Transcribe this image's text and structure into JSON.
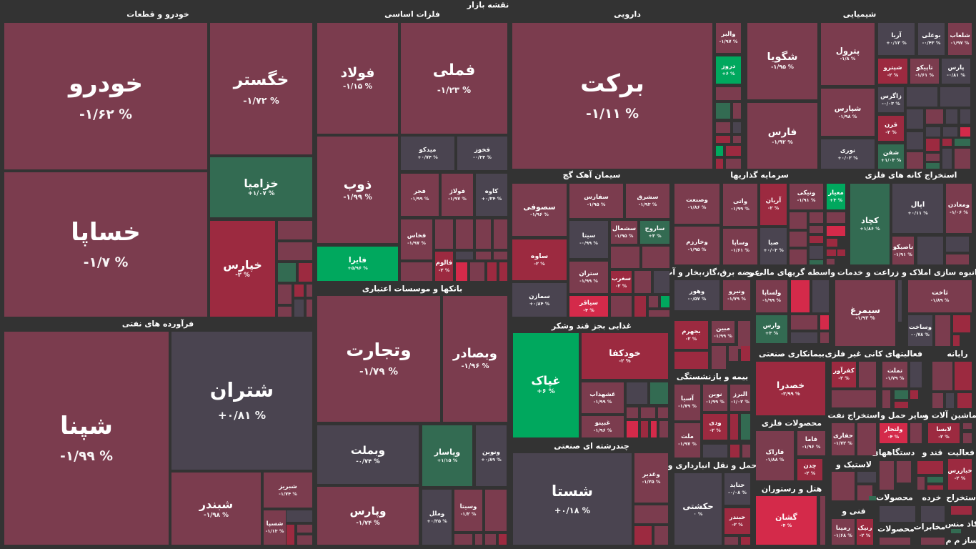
{
  "title": "نقشه بازار",
  "colors": {
    "r": "#7b3c4e",
    "g": "#4a4450",
    "R": "#9c2a40",
    "B": "#d42a4a",
    "G": "#336b52",
    "L": "#00a85e"
  },
  "sectors": [
    "خودرو و قطعات",
    "فلزات اساسی",
    "دارویی",
    "شیمیایی",
    "سیمان آهک گچ",
    "سرمایه گذاریها",
    "استخراج کانه های فلزی",
    "فرآورده های نفتی",
    "بانکها و موسسات اعتباری",
    "غذایی بجز قند وشکر",
    "چندرشته ای صنعتی",
    "عرضه برق،گاز،بخار و آب",
    "واسطه گریهای مالی و",
    "زراعت و خدمات",
    "انبوه سازی املاک و",
    "بیمه و بازنشستگی",
    "بیمانکاری صنعتی",
    "کانی غیر فلزی",
    "فعالیتهای",
    "رایانه",
    "محصولات فلزی",
    "استخراج نفت",
    "سایر حمل و",
    "ماشین آلات و",
    "حمل و نقل انبارداری و",
    "لاستیک و",
    "دستگاههای",
    "قند و",
    "فعالیت",
    "هتل و رستوران",
    "فنی و",
    "محصولات",
    "خرده",
    "استخراج",
    "محصولات",
    "مخابرات",
    "کاذ منس",
    "ساز م م"
  ],
  "tiles": [
    {
      "symbol": "خودرو",
      "change": "-۱/۶۲ %",
      "color": "r"
    },
    {
      "symbol": "خساپا",
      "change": "-۱/۷ %",
      "color": "r"
    },
    {
      "symbol": "خگستر",
      "change": "-۱/۷۲ %",
      "color": "r"
    },
    {
      "symbol": "خزامیا",
      "change": "+۱/۰۷ %",
      "color": "G"
    },
    {
      "symbol": "خپارس",
      "change": "-۲ %",
      "color": "R"
    },
    {
      "symbol": "شپنا",
      "change": "-۱/۹۹ %",
      "color": "r"
    },
    {
      "symbol": "شتران",
      "change": "+۰/۸۱ %",
      "color": "g"
    },
    {
      "symbol": "شبندر",
      "change": "-۱/۹۸ %",
      "color": "r"
    },
    {
      "symbol": "شبریز",
      "change": "-۱/۷۴ %",
      "color": "r"
    },
    {
      "symbol": "شسپا",
      "change": "-۱/۱۳ %",
      "color": "r"
    },
    {
      "symbol": "فولاد",
      "change": "-۱/۱۵ %",
      "color": "r"
    },
    {
      "symbol": "فملی",
      "change": "-۱/۲۳ %",
      "color": "r"
    },
    {
      "symbol": "ذوب",
      "change": "-۱/۹۹ %",
      "color": "r"
    },
    {
      "symbol": "فایرا",
      "change": "+۵/۹۶ %",
      "color": "L"
    },
    {
      "symbol": "میدکو",
      "change": "+۰/۷۴ %",
      "color": "g"
    },
    {
      "symbol": "فخوز",
      "change": "-۰/۳۴ %",
      "color": "g"
    },
    {
      "symbol": "فجر",
      "change": "-۱/۹۹ %",
      "color": "r"
    },
    {
      "symbol": "فولاژ",
      "change": "-۱/۹۷ %",
      "color": "r"
    },
    {
      "symbol": "کاوه",
      "change": "+۰/۳۴ %",
      "color": "g"
    },
    {
      "symbol": "فخاس",
      "change": "-۱/۹۷ %",
      "color": "r"
    },
    {
      "symbol": "فالوم",
      "change": "-۲ %",
      "color": "R"
    },
    {
      "symbol": "وتجارت",
      "change": "-۱/۷۹ %",
      "color": "r"
    },
    {
      "symbol": "وبصادر",
      "change": "-۱/۹۶ %",
      "color": "r"
    },
    {
      "symbol": "وبملت",
      "change": "-۰/۷۴ %",
      "color": "g"
    },
    {
      "symbol": "وپاسار",
      "change": "+۱/۱۵ %",
      "color": "G"
    },
    {
      "symbol": "ونوین",
      "change": "+۰/۸۹ %",
      "color": "g"
    },
    {
      "symbol": "وپارس",
      "change": "-۱/۷۴ %",
      "color": "r"
    },
    {
      "symbol": "وملل",
      "change": "+۰/۲۵ %",
      "color": "g"
    },
    {
      "symbol": "وسیتا",
      "change": "-۱/۲ %",
      "color": "r"
    },
    {
      "symbol": "برکت",
      "change": "-۱/۱۱ %",
      "color": "r"
    },
    {
      "symbol": "والبر",
      "change": "-۱/۹۷ %",
      "color": "r"
    },
    {
      "symbol": "دروز",
      "change": "+۶ %",
      "color": "L"
    },
    {
      "symbol": "شگویا",
      "change": "-۱/۹۵ %",
      "color": "r"
    },
    {
      "symbol": "فارس",
      "change": "-۱/۹۲ %",
      "color": "r"
    },
    {
      "symbol": "پترول",
      "change": "-۱/۸ %",
      "color": "r"
    },
    {
      "symbol": "شپارس",
      "change": "-۱/۹۸ %",
      "color": "r"
    },
    {
      "symbol": "نوری",
      "change": "+۰/۰۲ %",
      "color": "g"
    },
    {
      "symbol": "آریا",
      "change": "+۰/۱۲ %",
      "color": "g"
    },
    {
      "symbol": "بوعلی",
      "change": "-۰/۴۳ %",
      "color": "g"
    },
    {
      "symbol": "شلعاب",
      "change": "-۱/۹۷ %",
      "color": "r"
    },
    {
      "symbol": "شپترو",
      "change": "-۲ %",
      "color": "R"
    },
    {
      "symbol": "تاپیکو",
      "change": "-۱/۶۱ %",
      "color": "r"
    },
    {
      "symbol": "پارس",
      "change": "-۰/۸۱ %",
      "color": "g"
    },
    {
      "symbol": "زاگرس",
      "change": "-۰/۰۳ %",
      "color": "g"
    },
    {
      "symbol": "قرن",
      "change": "-۲ %",
      "color": "R"
    },
    {
      "symbol": "شفن",
      "change": "+۱/۰۳ %",
      "color": "G"
    },
    {
      "symbol": "سصوفی",
      "change": "-۱/۹۶ %",
      "color": "r"
    },
    {
      "symbol": "سفارس",
      "change": "-۱/۹۵ %",
      "color": "r"
    },
    {
      "symbol": "سشرق",
      "change": "-۱/۹۳ %",
      "color": "r"
    },
    {
      "symbol": "ساوه",
      "change": "-۲ %",
      "color": "R"
    },
    {
      "symbol": "سیتا",
      "change": "-۰/۹۹ %",
      "color": "g"
    },
    {
      "symbol": "سشمال",
      "change": "-۱/۹۵ %",
      "color": "r"
    },
    {
      "symbol": "ساروج",
      "change": "+۳ %",
      "color": "G"
    },
    {
      "symbol": "ستران",
      "change": "-۱/۹۹ %",
      "color": "r"
    },
    {
      "symbol": "سغرب",
      "change": "-۲ %",
      "color": "R"
    },
    {
      "symbol": "سمازن",
      "change": "+۰/۸۴ %",
      "color": "g"
    },
    {
      "symbol": "سیاقر",
      "change": "-۴ %",
      "color": "B"
    },
    {
      "symbol": "غپاک",
      "change": "+۶ %",
      "color": "L"
    },
    {
      "symbol": "خودکفا",
      "change": "-۲ %",
      "color": "R"
    },
    {
      "symbol": "غشهداب",
      "change": "-۱/۹۹ %",
      "color": "r"
    },
    {
      "symbol": "غبینو",
      "change": "-۱/۹۶ %",
      "color": "r"
    },
    {
      "symbol": "شستا",
      "change": "+۰/۱۸ %",
      "color": "g"
    },
    {
      "symbol": "وغدیر",
      "change": "-۱/۲۵ %",
      "color": "r"
    },
    {
      "symbol": "وصنعت",
      "change": "-۱/۸۶ %",
      "color": "r"
    },
    {
      "symbol": "واتی",
      "change": "-۱/۹۹ %",
      "color": "r"
    },
    {
      "symbol": "آریان",
      "change": "-۲ %",
      "color": "R"
    },
    {
      "symbol": "وخارزم",
      "change": "-۱/۹۵ %",
      "color": "r"
    },
    {
      "symbol": "وساپا",
      "change": "-۱/۶۱ %",
      "color": "r"
    },
    {
      "symbol": "صبا",
      "change": "+۰/۰۳ %",
      "color": "g"
    },
    {
      "symbol": "ونیکی",
      "change": "-۱/۹۱ %",
      "color": "r"
    },
    {
      "symbol": "معیار",
      "change": "+۳ %",
      "color": "L"
    },
    {
      "symbol": "کچاد",
      "change": "+۱/۸۶ %",
      "color": "G"
    },
    {
      "symbol": "اپال",
      "change": "+۰/۱۱ %",
      "color": "g"
    },
    {
      "symbol": "ومعادن",
      "change": "-۱/۰۶ %",
      "color": "r"
    },
    {
      "symbol": "تاصیکو",
      "change": "-۱/۹۱ %",
      "color": "r"
    },
    {
      "symbol": "وهور",
      "change": "-۰/۵۷ %",
      "color": "g"
    },
    {
      "symbol": "ونیرو",
      "change": "-۱/۷۹ %",
      "color": "r"
    },
    {
      "symbol": "بجهرم",
      "change": "-۲ %",
      "color": "R"
    },
    {
      "symbol": "مبین",
      "change": "-۱/۹۹ %",
      "color": "r"
    },
    {
      "symbol": "ولساپا",
      "change": "-۱/۹۹ %",
      "color": "r"
    },
    {
      "symbol": "وارس",
      "change": "+۳ %",
      "color": "G"
    },
    {
      "symbol": "سیمرغ",
      "change": "-۱/۹۳ %",
      "color": "r"
    },
    {
      "symbol": "ثاخت",
      "change": "-۱/۸۹ %",
      "color": "r"
    },
    {
      "symbol": "وساخت",
      "change": "-۰/۷۸ %",
      "color": "g"
    },
    {
      "symbol": "آسیا",
      "change": "-۱/۷۹ %",
      "color": "r"
    },
    {
      "symbol": "نوین",
      "change": "-۱/۹۹ %",
      "color": "r"
    },
    {
      "symbol": "البرز",
      "change": "-۱/۰۲ %",
      "color": "r"
    },
    {
      "symbol": "ملت",
      "change": "-۱/۹۷ %",
      "color": "r"
    },
    {
      "symbol": "ودی",
      "change": "-۲ %",
      "color": "R"
    },
    {
      "symbol": "خصدرا",
      "change": "-۳/۹۹ %",
      "color": "R"
    },
    {
      "symbol": "فاراک",
      "change": "-۱/۸۸ %",
      "color": "r"
    },
    {
      "symbol": "فاما",
      "change": "-۱/۹۶ %",
      "color": "r"
    },
    {
      "symbol": "چدن",
      "change": "-۲ %",
      "color": "R"
    },
    {
      "symbol": "گشان",
      "change": "-۴ %",
      "color": "B"
    },
    {
      "symbol": "کفرآور",
      "change": "-۲ %",
      "color": "R"
    },
    {
      "symbol": "حفاری",
      "change": "-۱/۷۲ %",
      "color": "r"
    },
    {
      "symbol": "رمپنا",
      "change": "-۱/۶۸ %",
      "color": "r"
    },
    {
      "symbol": "رنیک",
      "change": "-۲ %",
      "color": "R"
    },
    {
      "symbol": "تملت",
      "change": "-۱/۷۹ %",
      "color": "r"
    },
    {
      "symbol": "ولتجار",
      "change": "-۴ %",
      "color": "B"
    },
    {
      "symbol": "لابسا",
      "change": "-۲ %",
      "color": "R"
    },
    {
      "symbol": "خبازرس",
      "change": "-۲ %",
      "color": "R"
    },
    {
      "symbol": "حکشتی",
      "change": "۰ %",
      "color": "g"
    },
    {
      "symbol": "حتاید",
      "change": "-۰/۰۸ %",
      "color": "g"
    },
    {
      "symbol": "حبندر",
      "change": "-۲ %",
      "color": "R"
    }
  ]
}
